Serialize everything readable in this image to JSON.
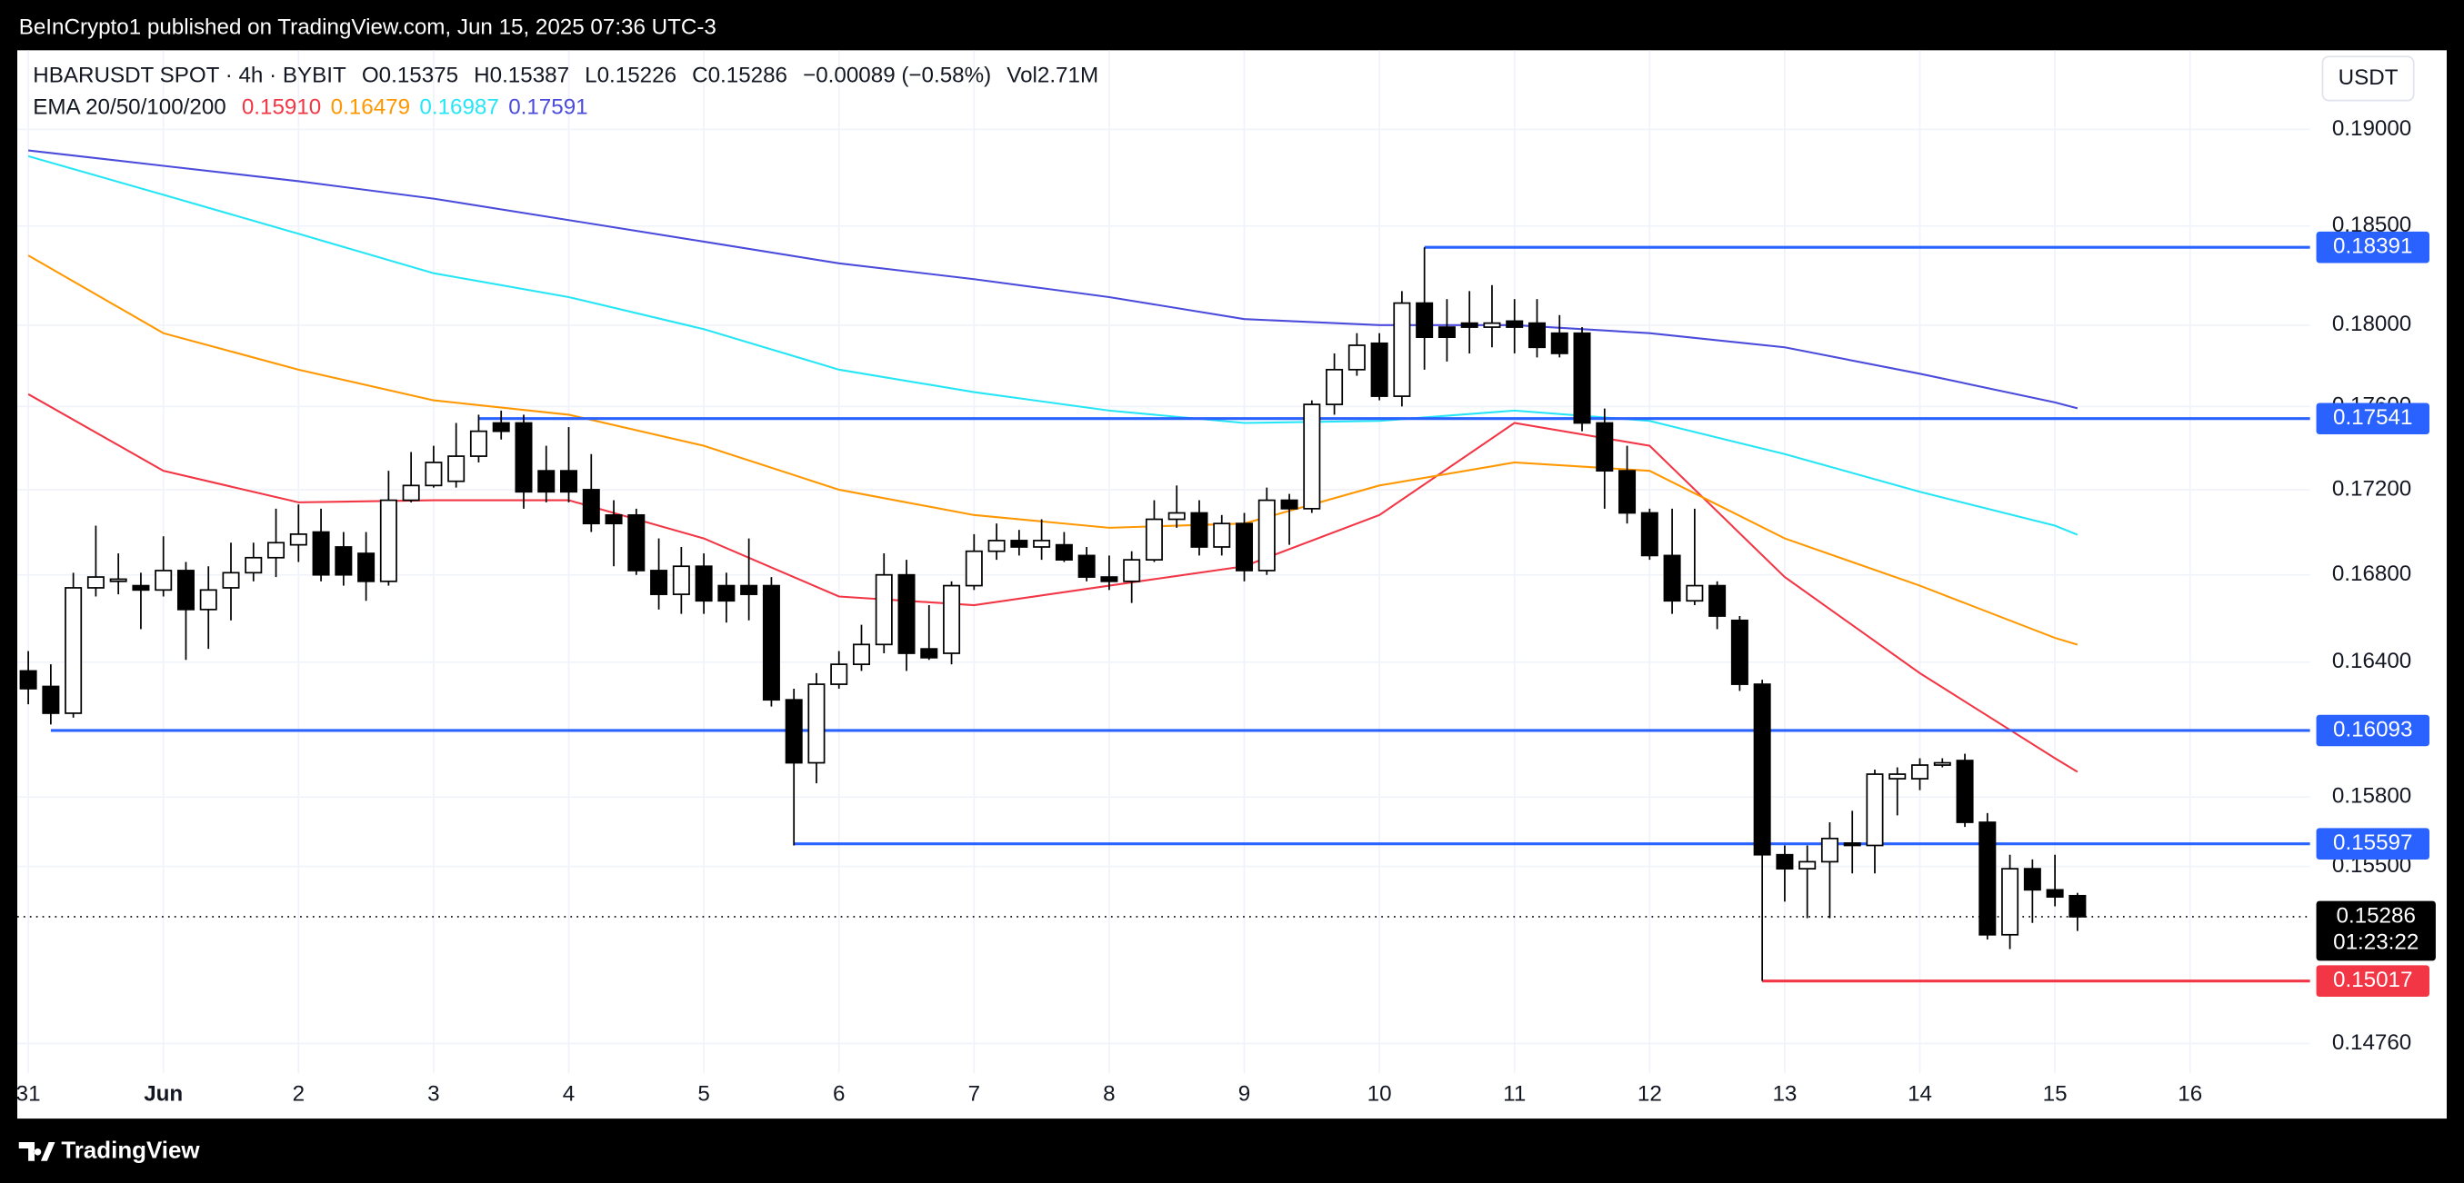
{
  "header": {
    "published": "BeInCrypto1 published on TradingView.com, Jun 15, 2025 07:36 UTC-3",
    "brand": "TradingView"
  },
  "chart_data": [
    {
      "type": "candlestick",
      "symbol": "HBARUSDT SPOT · 4h · BYBIT",
      "quote": [
        "O0.15375",
        "H0.15387",
        "L0.15226",
        "C0.15286",
        "−0.00089 (−0.58%)",
        "Vol2.71M"
      ],
      "currency": "USDT",
      "categories": [
        "31",
        null,
        null,
        null,
        null,
        null,
        "Jun",
        null,
        null,
        null,
        null,
        null,
        "2",
        null,
        null,
        null,
        null,
        null,
        "3",
        null,
        null,
        null,
        null,
        null,
        "4",
        null,
        null,
        null,
        null,
        null,
        "5",
        null,
        null,
        null,
        null,
        null,
        "6",
        null,
        null,
        null,
        null,
        null,
        "7",
        null,
        null,
        null,
        null,
        null,
        "8",
        null,
        null,
        null,
        null,
        null,
        "9",
        null,
        null,
        null,
        null,
        null,
        "10",
        null,
        null,
        null,
        null,
        null,
        "11",
        null,
        null,
        null,
        null,
        null,
        "12",
        null,
        null,
        null,
        null,
        null,
        "13",
        null,
        null,
        null,
        null,
        null,
        "14",
        null,
        null,
        null,
        null,
        null,
        "15",
        null,
        null,
        null,
        null,
        null,
        "16"
      ],
      "open": [
        0.1636,
        0.1629,
        0.1617,
        0.1674,
        0.1677,
        0.1675,
        0.1673,
        0.1682,
        0.1664,
        0.1674,
        0.1681,
        0.1688,
        0.1694,
        0.17,
        0.1693,
        0.169,
        0.1677,
        0.1715,
        0.1722,
        0.1724,
        0.1736,
        0.1752,
        0.1752,
        0.1729,
        0.1729,
        0.172,
        0.1708,
        0.1708,
        0.1682,
        0.1671,
        0.1684,
        0.1675,
        0.1675,
        0.1675,
        0.1623,
        0.1595,
        0.163,
        0.1639,
        0.1648,
        0.168,
        0.1646,
        0.1644,
        0.1675,
        0.1691,
        0.1696,
        0.1693,
        0.1694,
        0.1689,
        0.1679,
        0.1677,
        0.1687,
        0.1706,
        0.1709,
        0.1693,
        0.1704,
        0.1682,
        0.1715,
        0.1711,
        0.1761,
        0.1778,
        0.1791,
        0.1765,
        0.1811,
        0.1799,
        0.1801,
        0.1799,
        0.1802,
        0.1801,
        0.1796,
        0.1796,
        0.1752,
        0.1729,
        0.1709,
        0.1689,
        0.1668,
        0.1675,
        0.1659,
        0.163,
        0.1555,
        0.1549,
        0.1552,
        0.156,
        0.1559,
        0.1588,
        0.1588,
        0.1594,
        0.1596,
        0.1569,
        0.1521,
        0.1549,
        0.154,
        0.15375,
        null,
        null,
        null,
        null,
        null
      ],
      "high": [
        0.1645,
        0.1639,
        0.1681,
        0.1703,
        0.169,
        0.1681,
        0.1698,
        0.1686,
        0.1684,
        0.1695,
        0.1695,
        0.1711,
        0.1713,
        0.1711,
        0.17,
        0.17,
        0.1729,
        0.1738,
        0.1741,
        0.1752,
        0.1756,
        0.1758,
        0.1756,
        0.1741,
        0.175,
        0.1737,
        0.1715,
        0.1711,
        0.1697,
        0.1693,
        0.169,
        0.1681,
        0.1697,
        0.1679,
        0.1628,
        0.1635,
        0.1645,
        0.1657,
        0.169,
        0.1687,
        0.1666,
        0.1677,
        0.1699,
        0.1704,
        0.1701,
        0.1706,
        0.17,
        0.1693,
        0.1689,
        0.1691,
        0.1715,
        0.1722,
        0.1715,
        0.1708,
        0.1709,
        0.1721,
        0.1718,
        0.1763,
        0.1786,
        0.1796,
        0.1796,
        0.1817,
        0.18391,
        0.1813,
        0.1817,
        0.182,
        0.1813,
        0.1813,
        0.1805,
        0.1799,
        0.1759,
        0.1741,
        0.1711,
        0.1711,
        0.1711,
        0.1677,
        0.1661,
        0.1632,
        0.1559,
        0.1559,
        0.1569,
        0.1574,
        0.1592,
        0.1593,
        0.1597,
        0.1597,
        0.1599,
        0.1573,
        0.1555,
        0.1553,
        0.1555,
        0.15387,
        null,
        null,
        null,
        null,
        null
      ],
      "low": [
        0.1621,
        0.1612,
        0.1615,
        0.167,
        0.1671,
        0.1655,
        0.167,
        0.1641,
        0.1646,
        0.1659,
        0.1677,
        0.1679,
        0.1686,
        0.1677,
        0.1675,
        0.1668,
        0.1675,
        0.1714,
        0.1721,
        0.1721,
        0.1733,
        0.1744,
        0.1711,
        0.1714,
        0.1714,
        0.17,
        0.1684,
        0.168,
        0.1664,
        0.1662,
        0.1662,
        0.1658,
        0.1659,
        0.162,
        0.1559,
        0.1586,
        0.1628,
        0.1636,
        0.1644,
        0.1636,
        0.1641,
        0.1639,
        0.1673,
        0.1687,
        0.1689,
        0.1687,
        0.1686,
        0.1677,
        0.1673,
        0.1667,
        0.1686,
        0.1702,
        0.1689,
        0.1689,
        0.1677,
        0.168,
        0.1694,
        0.1709,
        0.1756,
        0.1775,
        0.1763,
        0.176,
        0.1778,
        0.1782,
        0.1786,
        0.1789,
        0.1786,
        0.1784,
        0.1784,
        0.1748,
        0.1711,
        0.1704,
        0.1687,
        0.1662,
        0.1666,
        0.1655,
        0.1627,
        0.15017,
        0.1535,
        0.1528,
        0.1528,
        0.1547,
        0.1547,
        0.1572,
        0.1583,
        0.1593,
        0.1567,
        0.1519,
        0.1515,
        0.1526,
        0.1533,
        0.15226,
        null,
        null,
        null,
        null,
        null
      ],
      "close": [
        0.1628,
        0.1617,
        0.1674,
        0.1679,
        0.1678,
        0.1673,
        0.1682,
        0.1664,
        0.1673,
        0.1681,
        0.1688,
        0.1695,
        0.1699,
        0.168,
        0.168,
        0.1677,
        0.1715,
        0.1722,
        0.1733,
        0.1736,
        0.1748,
        0.1748,
        0.1719,
        0.1719,
        0.1719,
        0.1704,
        0.1704,
        0.1682,
        0.1671,
        0.1684,
        0.1668,
        0.1668,
        0.1671,
        0.1623,
        0.1595,
        0.163,
        0.1639,
        0.1648,
        0.168,
        0.1644,
        0.1642,
        0.1675,
        0.1691,
        0.1696,
        0.1693,
        0.1696,
        0.1687,
        0.1679,
        0.1677,
        0.1687,
        0.1706,
        0.1709,
        0.1693,
        0.1704,
        0.1682,
        0.1715,
        0.1711,
        0.1761,
        0.1778,
        0.179,
        0.1765,
        0.1811,
        0.1794,
        0.1794,
        0.1799,
        0.1801,
        0.1799,
        0.1789,
        0.1786,
        0.1752,
        0.1729,
        0.1709,
        0.1689,
        0.1668,
        0.1675,
        0.1661,
        0.163,
        0.1555,
        0.1549,
        0.1552,
        0.1562,
        0.1559,
        0.159,
        0.159,
        0.1594,
        0.1595,
        0.1569,
        0.1521,
        0.1549,
        0.154,
        0.1537,
        0.15286,
        null,
        null,
        null,
        null,
        null
      ],
      "up_color": "#ffffff",
      "down_color": "#000000",
      "ylim": [
        0.1464,
        0.1942
      ],
      "log_scale": true,
      "grid": true,
      "yticks": [
        {
          "value": 0.19,
          "label": "0.19000"
        },
        {
          "value": 0.185,
          "label": "0.18500"
        },
        {
          "value": 0.18,
          "label": "0.18000"
        },
        {
          "value": 0.176,
          "label": "0.17600"
        },
        {
          "value": 0.172,
          "label": "0.17200"
        },
        {
          "value": 0.168,
          "label": "0.16800"
        },
        {
          "value": 0.164,
          "label": "0.16400"
        },
        {
          "value": 0.158,
          "label": "0.15800"
        },
        {
          "value": 0.155,
          "label": "0.15500"
        },
        {
          "value": 0.1476,
          "label": "0.14760"
        }
      ],
      "levels": [
        {
          "value": 0.18391,
          "label": "0.18391",
          "color": "#2962ff"
        },
        {
          "value": 0.17541,
          "label": "0.17541",
          "color": "#2962ff"
        },
        {
          "value": 0.16093,
          "label": "0.16093",
          "color": "#2962ff"
        },
        {
          "value": 0.15597,
          "label": "0.15597",
          "color": "#2962ff"
        },
        {
          "value": 0.15017,
          "label": "0.15017",
          "color": "#f23645"
        }
      ],
      "last_price_label": "0.15286",
      "countdown": "01:23:22"
    },
    {
      "type": "line",
      "title": "EMA 20/50/100/200",
      "series": [
        {
          "color": "#f23645",
          "label": "0.15910",
          "values": [
            0.1766,
            0.1729,
            0.1714,
            0.1715,
            0.1715,
            0.1697,
            0.167,
            0.1666,
            0.1675,
            0.1684,
            0.1708,
            0.1752,
            0.1741,
            0.1679,
            0.1635,
            0.1597,
            0.1591
          ]
        },
        {
          "color": "#ff9800",
          "label": "0.16479",
          "values": [
            0.1835,
            0.1796,
            0.1778,
            0.1763,
            0.1756,
            0.1741,
            0.172,
            0.1708,
            0.1702,
            0.1704,
            0.1722,
            0.1733,
            0.1729,
            0.1697,
            0.1675,
            0.1651,
            0.16479
          ]
        },
        {
          "color": "#26e6f5",
          "label": "0.16987",
          "values": [
            0.1886,
            0.1866,
            0.1846,
            0.1826,
            0.1814,
            0.1798,
            0.1778,
            0.1767,
            0.1758,
            0.1752,
            0.1753,
            0.1758,
            0.1753,
            0.1737,
            0.1719,
            0.1703,
            0.16987
          ]
        },
        {
          "color": "#4b4bdc",
          "label": "0.17591",
          "values": [
            0.1889,
            0.1881,
            0.1873,
            0.1864,
            0.1853,
            0.1842,
            0.1831,
            0.1823,
            0.1814,
            0.1803,
            0.18,
            0.18,
            0.1796,
            0.1789,
            0.1776,
            0.1762,
            0.17591
          ]
        }
      ]
    }
  ]
}
